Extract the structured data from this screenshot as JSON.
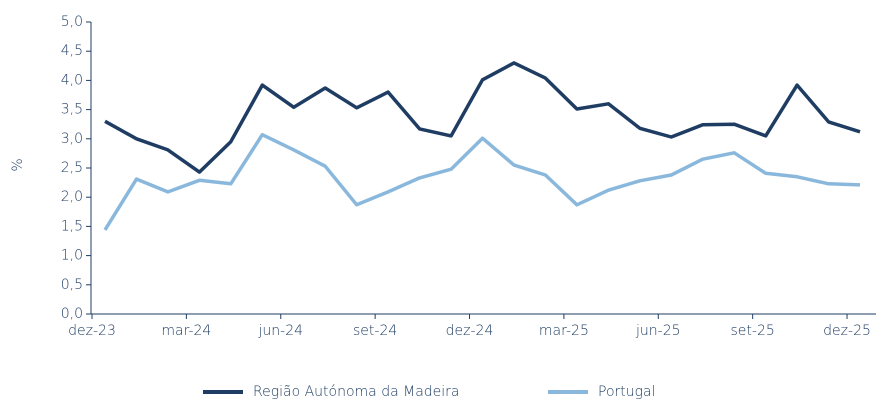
{
  "chart_data": {
    "type": "line",
    "ylabel": "%",
    "categories": [
      "dez-23",
      null,
      null,
      "mar-24",
      null,
      null,
      "jun-24",
      null,
      null,
      "set-24",
      null,
      null,
      "dez-24",
      null,
      null,
      "mar-25",
      null,
      null,
      "jun-25",
      null,
      null,
      "set-25",
      null,
      null,
      "dez-25"
    ],
    "series": [
      {
        "name": "Região Autónoma da Madeira",
        "color": "#1f3d63",
        "values": [
          3.3,
          3.0,
          2.81,
          2.43,
          2.95,
          3.92,
          3.54,
          3.87,
          3.53,
          3.8,
          3.17,
          3.05,
          4.01,
          4.3,
          4.04,
          3.51,
          3.6,
          3.18,
          3.03,
          3.24,
          3.25,
          3.05,
          3.92,
          3.29,
          3.12
        ]
      },
      {
        "name": "Portugal",
        "color": "#8ab8dc",
        "values": [
          1.44,
          2.31,
          2.09,
          2.29,
          2.23,
          3.07,
          2.81,
          2.53,
          1.87,
          2.09,
          2.33,
          2.48,
          3.01,
          2.55,
          2.38,
          1.87,
          2.12,
          2.28,
          2.38,
          2.65,
          2.76,
          2.41,
          2.35,
          2.23,
          2.21
        ]
      }
    ],
    "ylim": [
      0,
      5
    ],
    "yticks": [
      {
        "value": 0,
        "label": "0,0"
      },
      {
        "value": 0.5,
        "label": "0,5"
      },
      {
        "value": 1,
        "label": "1,0"
      },
      {
        "value": 1.5,
        "label": "1,5"
      },
      {
        "value": 2,
        "label": "2,0"
      },
      {
        "value": 2.5,
        "label": "2,5"
      },
      {
        "value": 3,
        "label": "3,0"
      },
      {
        "value": 3.5,
        "label": "3,5"
      },
      {
        "value": 4,
        "label": "4,0"
      },
      {
        "value": 4.5,
        "label": "4,5"
      },
      {
        "value": 5,
        "label": "5,0"
      }
    ],
    "legend": "bottom"
  }
}
